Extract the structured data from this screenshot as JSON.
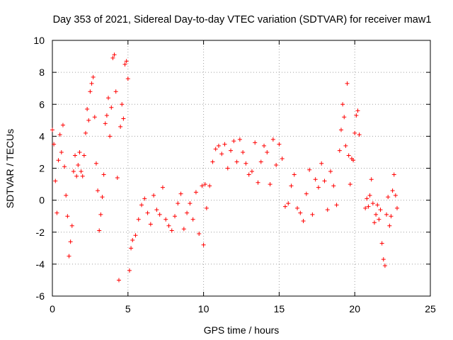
{
  "chart_data": {
    "type": "scatter",
    "title": "Day 353 of 2021, Sidereal Day-to-day VTEC variation (SDTVAR) for receiver maw1",
    "xlabel": "GPS time / hours",
    "ylabel": "SDTVAR / TECUs",
    "xlim": [
      0,
      25
    ],
    "ylim": [
      -6,
      10
    ],
    "xticks": [
      0,
      5,
      10,
      15,
      20,
      25
    ],
    "yticks": [
      -6,
      -4,
      -2,
      0,
      2,
      4,
      6,
      8,
      10
    ],
    "grid": true,
    "marker": "+",
    "color": "#ff0000",
    "series": [
      {
        "name": "SDTVAR",
        "x": [
          0.0,
          0.1,
          0.2,
          0.3,
          0.4,
          0.5,
          0.6,
          0.7,
          0.8,
          0.9,
          1.0,
          1.1,
          1.2,
          1.3,
          1.4,
          1.5,
          1.6,
          1.7,
          1.8,
          1.9,
          2.0,
          2.1,
          2.2,
          2.3,
          2.4,
          2.5,
          2.6,
          2.7,
          2.8,
          2.9,
          3.0,
          3.1,
          3.2,
          3.3,
          3.4,
          3.5,
          3.6,
          3.7,
          3.8,
          3.9,
          4.0,
          4.1,
          4.2,
          4.3,
          4.4,
          4.5,
          4.6,
          4.7,
          4.8,
          4.9,
          5.0,
          5.1,
          5.2,
          5.3,
          5.5,
          5.7,
          5.9,
          6.1,
          6.3,
          6.5,
          6.7,
          6.9,
          7.1,
          7.3,
          7.5,
          7.7,
          7.9,
          8.1,
          8.3,
          8.5,
          8.7,
          8.9,
          9.1,
          9.3,
          9.5,
          9.7,
          9.9,
          10.0,
          10.1,
          10.2,
          10.4,
          10.6,
          10.8,
          11.0,
          11.2,
          11.4,
          11.6,
          11.8,
          12.0,
          12.2,
          12.4,
          12.6,
          12.8,
          13.0,
          13.2,
          13.4,
          13.6,
          13.8,
          14.0,
          14.2,
          14.4,
          14.6,
          14.8,
          15.0,
          15.2,
          15.4,
          15.6,
          15.8,
          16.0,
          16.2,
          16.4,
          16.6,
          16.8,
          17.0,
          17.2,
          17.4,
          17.6,
          17.8,
          18.0,
          18.2,
          18.4,
          18.6,
          18.8,
          19.0,
          19.1,
          19.2,
          19.3,
          19.4,
          19.5,
          19.6,
          19.7,
          19.8,
          19.9,
          20.0,
          20.1,
          20.2,
          20.3,
          20.7,
          20.8,
          20.9,
          21.0,
          21.1,
          21.2,
          21.3,
          21.4,
          21.5,
          21.6,
          21.7,
          21.8,
          21.9,
          22.0,
          22.1,
          22.2,
          22.3,
          22.4,
          22.5,
          22.6,
          22.7,
          22.8
        ],
        "y": [
          4.4,
          3.5,
          1.2,
          -0.8,
          2.5,
          4.1,
          3.0,
          4.7,
          2.1,
          0.3,
          -1.0,
          -3.5,
          -2.6,
          -1.6,
          1.8,
          2.8,
          1.5,
          2.2,
          3.0,
          1.8,
          1.5,
          2.8,
          4.2,
          5.7,
          5.0,
          6.8,
          7.3,
          7.7,
          5.2,
          2.3,
          0.6,
          -1.9,
          -0.9,
          0.2,
          1.6,
          4.8,
          5.3,
          6.4,
          4.0,
          5.8,
          8.9,
          9.1,
          6.8,
          1.4,
          -5.0,
          4.6,
          6.0,
          5.1,
          8.5,
          8.7,
          7.6,
          -4.4,
          -3.0,
          -2.5,
          -2.2,
          -1.2,
          -0.3,
          0.1,
          -0.8,
          -1.5,
          0.3,
          -0.6,
          -0.9,
          0.8,
          -1.2,
          -1.6,
          -1.9,
          -1.0,
          -0.2,
          0.4,
          -1.8,
          -0.8,
          -0.2,
          -1.2,
          0.5,
          -2.1,
          0.9,
          -2.8,
          1.0,
          -0.5,
          0.9,
          2.4,
          3.2,
          3.4,
          2.9,
          3.5,
          2.0,
          3.1,
          3.7,
          2.4,
          3.8,
          3.0,
          2.3,
          1.6,
          1.8,
          3.6,
          1.1,
          2.4,
          3.4,
          3.0,
          1.0,
          3.8,
          2.2,
          3.5,
          2.6,
          -0.4,
          -0.2,
          0.9,
          1.6,
          -0.5,
          -0.8,
          -1.3,
          0.4,
          1.9,
          -0.9,
          1.3,
          0.8,
          2.3,
          1.2,
          -0.6,
          1.8,
          0.9,
          -0.3,
          3.1,
          4.4,
          6.0,
          5.2,
          3.4,
          7.3,
          2.8,
          1.0,
          2.6,
          2.5,
          4.2,
          5.3,
          5.6,
          4.1,
          -0.5,
          0.1,
          -0.4,
          0.3,
          1.3,
          -0.2,
          -1.4,
          -0.9,
          -0.3,
          -1.2,
          -0.6,
          -2.7,
          -3.7,
          -4.1,
          -0.9,
          0.2,
          -1.6,
          -1.0,
          0.6,
          1.6,
          0.3,
          -0.5
        ]
      }
    ]
  }
}
